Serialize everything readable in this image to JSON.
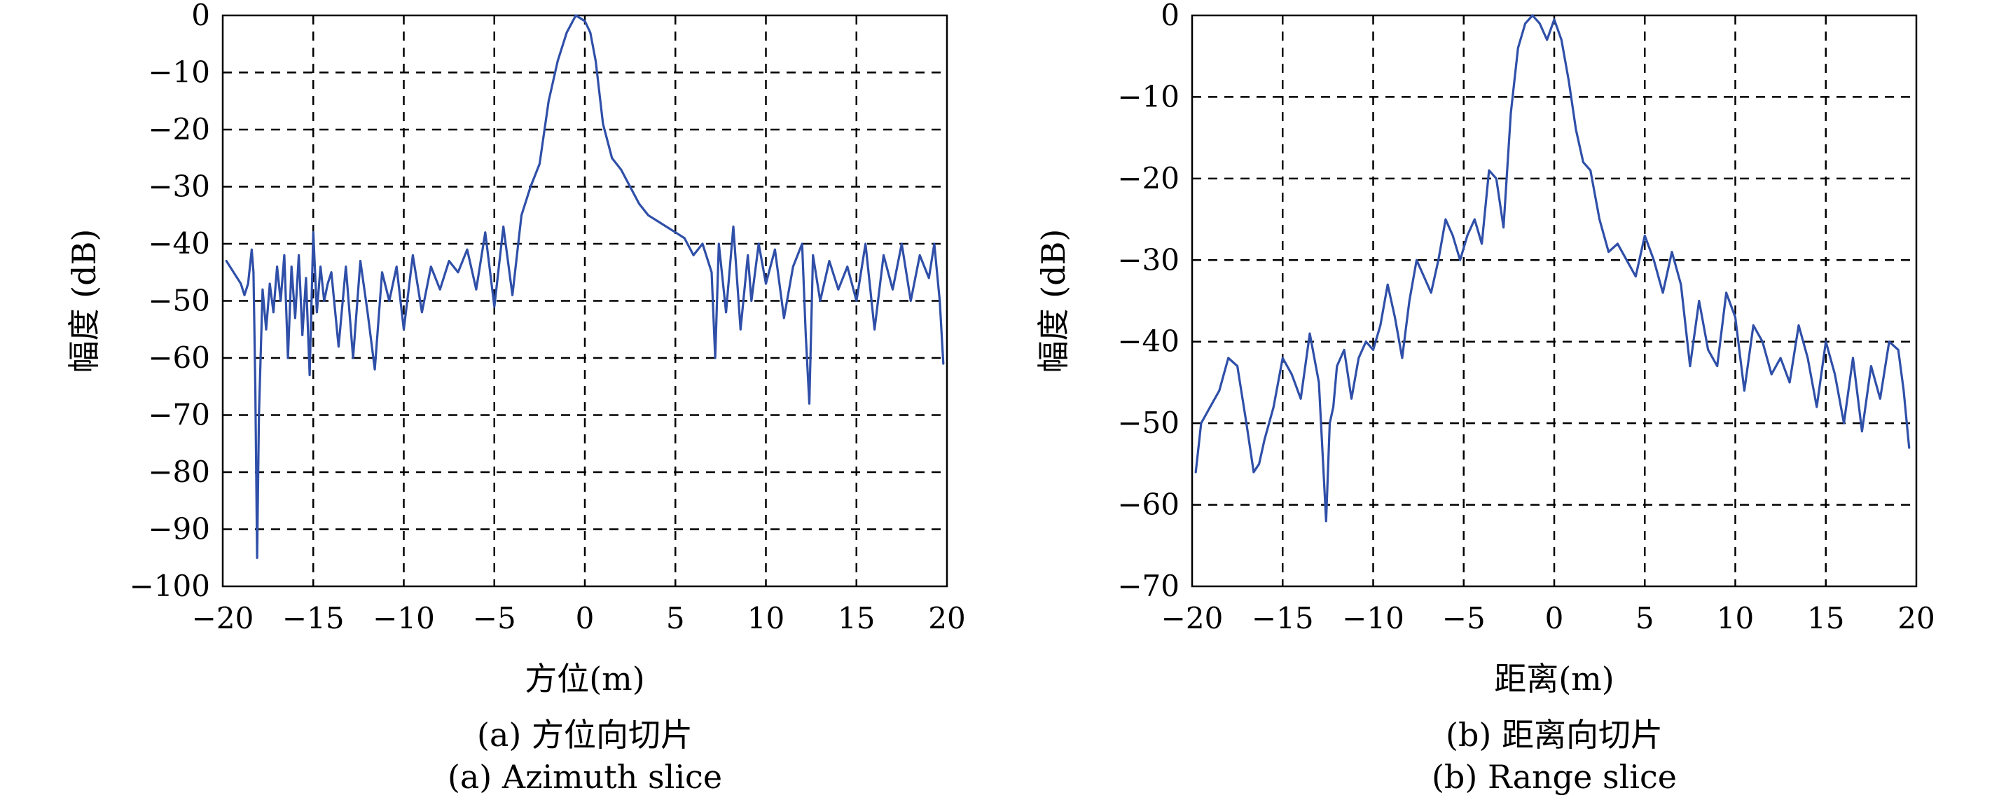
{
  "chart_data": [
    {
      "type": "line",
      "xlabel": "方位(m)",
      "ylabel": "幅度 (dB)",
      "caption_cn": "(a) 方位向切片",
      "caption_en": "(a) Azimuth slice",
      "xlim": [
        -20,
        20
      ],
      "ylim": [
        -100,
        0
      ],
      "xticks": [
        -20,
        -15,
        -10,
        -5,
        0,
        5,
        10,
        15,
        20
      ],
      "yticks": [
        0,
        -10,
        -20,
        -30,
        -40,
        -50,
        -60,
        -70,
        -80,
        -90,
        -100
      ],
      "grid": true,
      "color": "#2f4fa8",
      "series": [
        {
          "x": [
            -19.8,
            -19.4,
            -19.0,
            -18.8,
            -18.6,
            -18.4,
            -18.3,
            -18.2,
            -18.1,
            -18.0,
            -17.8,
            -17.6,
            -17.4,
            -17.2,
            -17.0,
            -16.8,
            -16.6,
            -16.4,
            -16.2,
            -16.0,
            -15.8,
            -15.6,
            -15.4,
            -15.2,
            -15.0,
            -14.8,
            -14.6,
            -14.4,
            -14.2,
            -14.0,
            -13.6,
            -13.2,
            -12.8,
            -12.4,
            -12.0,
            -11.6,
            -11.2,
            -10.8,
            -10.4,
            -10.0,
            -9.5,
            -9.0,
            -8.5,
            -8.0,
            -7.5,
            -7.0,
            -6.5,
            -6.0,
            -5.5,
            -5.0,
            -4.5,
            -4.0,
            -3.5,
            -3.0,
            -2.5,
            -2.0,
            -1.5,
            -1.0,
            -0.5,
            0.0,
            0.3,
            0.6,
            1.0,
            1.5,
            2.0,
            2.5,
            3.0,
            3.5,
            4.0,
            4.5,
            5.0,
            5.5,
            6.0,
            6.5,
            7.0,
            7.2,
            7.4,
            7.8,
            8.2,
            8.6,
            9.0,
            9.2,
            9.6,
            10.0,
            10.5,
            11.0,
            11.5,
            12.0,
            12.2,
            12.4,
            12.6,
            13.0,
            13.5,
            14.0,
            14.5,
            15.0,
            15.5,
            16.0,
            16.5,
            17.0,
            17.5,
            18.0,
            18.5,
            19.0,
            19.3,
            19.6,
            19.8
          ],
          "y": [
            -43,
            -45,
            -47,
            -49,
            -47,
            -41,
            -45,
            -65,
            -95,
            -70,
            -48,
            -55,
            -47,
            -52,
            -44,
            -50,
            -42,
            -60,
            -44,
            -53,
            -42,
            -56,
            -46,
            -63,
            -38,
            -52,
            -44,
            -50,
            -47,
            -45,
            -58,
            -44,
            -60,
            -43,
            -52,
            -62,
            -45,
            -50,
            -44,
            -55,
            -42,
            -52,
            -44,
            -48,
            -43,
            -45,
            -41,
            -48,
            -38,
            -51,
            -37,
            -49,
            -35,
            -30,
            -26,
            -15,
            -8,
            -3,
            0,
            -1,
            -3,
            -8,
            -19,
            -25,
            -27,
            -30,
            -33,
            -35,
            -36,
            -37,
            -38,
            -39,
            -42,
            -40,
            -45,
            -60,
            -40,
            -52,
            -37,
            -55,
            -42,
            -50,
            -40,
            -47,
            -41,
            -53,
            -44,
            -40,
            -56,
            -68,
            -42,
            -50,
            -43,
            -48,
            -44,
            -50,
            -40,
            -55,
            -42,
            -48,
            -40,
            -50,
            -42,
            -46,
            -40,
            -50,
            -61
          ]
        }
      ]
    },
    {
      "type": "line",
      "xlabel": "距离(m)",
      "ylabel": "幅度 (dB)",
      "caption_cn": "(b) 距离向切片",
      "caption_en": "(b) Range slice",
      "xlim": [
        -20,
        20
      ],
      "ylim": [
        -70,
        0
      ],
      "xticks": [
        -20,
        -15,
        -10,
        -5,
        0,
        5,
        10,
        15,
        20
      ],
      "yticks": [
        0,
        -10,
        -20,
        -30,
        -40,
        -50,
        -60,
        -70
      ],
      "grid": true,
      "color": "#2f4fa8",
      "series": [
        {
          "x": [
            -19.8,
            -19.5,
            -19.0,
            -18.5,
            -18.0,
            -17.5,
            -17.0,
            -16.6,
            -16.3,
            -16.0,
            -15.5,
            -15.0,
            -14.5,
            -14.0,
            -13.5,
            -13.0,
            -12.6,
            -12.4,
            -12.2,
            -12.0,
            -11.6,
            -11.2,
            -10.8,
            -10.4,
            -10.0,
            -9.6,
            -9.2,
            -8.8,
            -8.4,
            -8.0,
            -7.6,
            -7.2,
            -6.8,
            -6.4,
            -6.0,
            -5.6,
            -5.2,
            -4.8,
            -4.4,
            -4.0,
            -3.6,
            -3.2,
            -2.8,
            -2.4,
            -2.0,
            -1.6,
            -1.2,
            -0.8,
            -0.4,
            0.0,
            0.4,
            0.8,
            1.2,
            1.6,
            2.0,
            2.5,
            3.0,
            3.5,
            4.0,
            4.5,
            5.0,
            5.5,
            6.0,
            6.5,
            7.0,
            7.5,
            8.0,
            8.5,
            9.0,
            9.5,
            10.0,
            10.5,
            11.0,
            11.5,
            12.0,
            12.5,
            13.0,
            13.5,
            14.0,
            14.5,
            15.0,
            15.5,
            16.0,
            16.5,
            17.0,
            17.5,
            18.0,
            18.5,
            19.0,
            19.3,
            19.6
          ],
          "y": [
            -56,
            -50,
            -48,
            -46,
            -42,
            -43,
            -50,
            -56,
            -55,
            -52,
            -48,
            -42,
            -44,
            -47,
            -39,
            -45,
            -62,
            -50,
            -48,
            -43,
            -41,
            -47,
            -42,
            -40,
            -41,
            -38,
            -33,
            -37,
            -42,
            -35,
            -30,
            -32,
            -34,
            -30,
            -25,
            -27,
            -30,
            -27,
            -25,
            -28,
            -19,
            -20,
            -26,
            -12,
            -4,
            -1,
            0,
            -1,
            -3,
            -0.5,
            -3,
            -8,
            -14,
            -18,
            -19,
            -25,
            -29,
            -28,
            -30,
            -32,
            -27,
            -30,
            -34,
            -29,
            -33,
            -43,
            -35,
            -41,
            -43,
            -34,
            -37,
            -46,
            -38,
            -40,
            -44,
            -42,
            -45,
            -38,
            -42,
            -48,
            -40,
            -44,
            -50,
            -42,
            -51,
            -43,
            -47,
            -40,
            -41,
            -46,
            -53
          ]
        }
      ]
    }
  ]
}
